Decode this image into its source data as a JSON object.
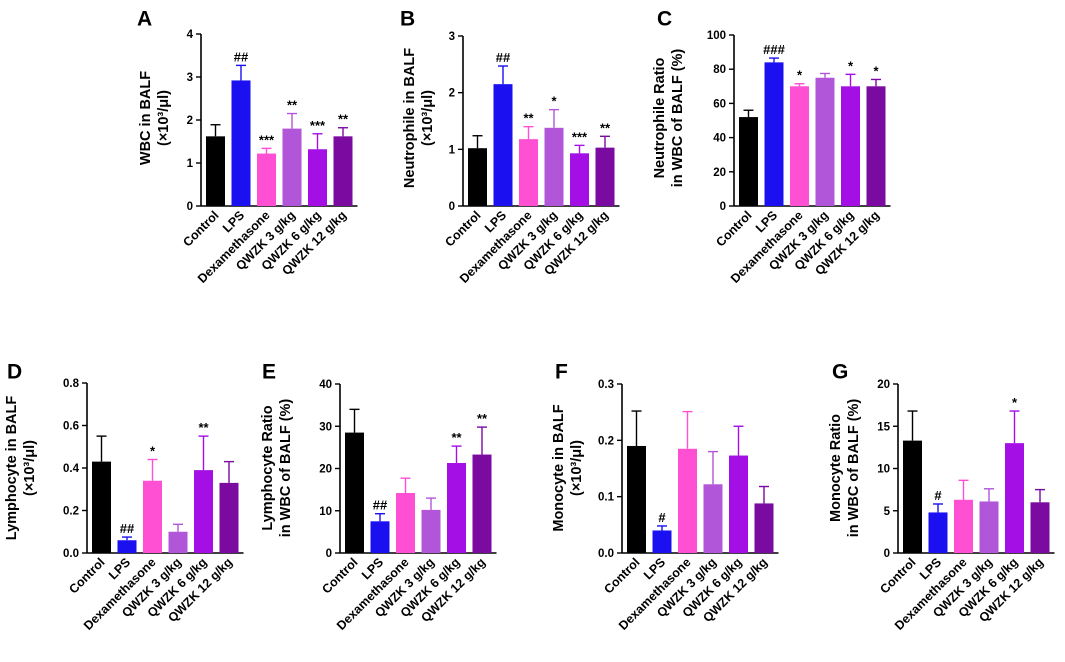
{
  "figure": {
    "categories": [
      "Control",
      "LPS",
      "Dexamethasone",
      "QWZK 3 g/kg",
      "QWZK 6 g/kg",
      "QWZK 12 g/kg"
    ],
    "colors": [
      "#000000",
      "#1a10f0",
      "#ff4fd2",
      "#b256d9",
      "#a40fe6",
      "#7a0aa0"
    ]
  },
  "chart_data": [
    {
      "panel": "A",
      "type": "bar",
      "ylabel_lines": [
        "WBC in BALF",
        "(×10³/μl)"
      ],
      "ylim": [
        0,
        4
      ],
      "yticks": [
        "0",
        "1",
        "2",
        "3",
        "4"
      ],
      "values": [
        1.62,
        2.92,
        1.22,
        1.8,
        1.32,
        1.62
      ],
      "errors": [
        0.27,
        0.35,
        0.12,
        0.35,
        0.36,
        0.2
      ],
      "annotations": [
        "",
        "##",
        "***",
        "**",
        "***",
        "**"
      ]
    },
    {
      "panel": "B",
      "type": "bar",
      "ylabel_lines": [
        "Neutrophile in BALF",
        "(×10³/μl)"
      ],
      "ylim": [
        0,
        3
      ],
      "yticks": [
        "0",
        "1",
        "2",
        "3"
      ],
      "values": [
        1.02,
        2.15,
        1.18,
        1.38,
        0.93,
        1.03
      ],
      "errors": [
        0.22,
        0.32,
        0.22,
        0.32,
        0.14,
        0.2
      ],
      "annotations": [
        "",
        "##",
        "**",
        "*",
        "***",
        "**"
      ]
    },
    {
      "panel": "C",
      "type": "bar",
      "ylabel_lines": [
        "Neutrophile Ratio",
        "in WBC of BALF (%)"
      ],
      "ylim": [
        0,
        100
      ],
      "yticks": [
        "0",
        "20",
        "40",
        "60",
        "80",
        "100"
      ],
      "values": [
        52,
        84,
        70,
        75,
        70,
        70
      ],
      "errors": [
        4,
        2.5,
        1.5,
        2.5,
        7,
        4
      ],
      "annotations": [
        "",
        "###",
        "*",
        "",
        "*",
        "*"
      ]
    },
    {
      "panel": "D",
      "type": "bar",
      "ylabel_lines": [
        "Lymphocyte in BALF",
        "(×10³/μl)"
      ],
      "ylim": [
        0,
        0.8
      ],
      "yticks": [
        "0.0",
        "0.2",
        "0.4",
        "0.6",
        "0.8"
      ],
      "values": [
        0.43,
        0.06,
        0.34,
        0.1,
        0.39,
        0.33
      ],
      "errors": [
        0.12,
        0.015,
        0.1,
        0.035,
        0.16,
        0.1
      ],
      "annotations": [
        "",
        "##",
        "*",
        "",
        "**",
        ""
      ]
    },
    {
      "panel": "E",
      "type": "bar",
      "ylabel_lines": [
        "Lymphocyte Ratio",
        "in WBC of BALF (%)"
      ],
      "ylim": [
        0,
        40
      ],
      "yticks": [
        "0",
        "10",
        "20",
        "30",
        "40"
      ],
      "values": [
        28.5,
        7.5,
        14.2,
        10.2,
        21.3,
        23.3
      ],
      "errors": [
        5.5,
        1.8,
        3.5,
        2.8,
        4,
        6.5
      ],
      "annotations": [
        "",
        "##",
        "",
        "",
        "**",
        "**"
      ]
    },
    {
      "panel": "F",
      "type": "bar",
      "ylabel_lines": [
        "Monocyte in BALF",
        "(×10³/μl)"
      ],
      "ylim": [
        0,
        0.3
      ],
      "yticks": [
        "0.0",
        "0.1",
        "0.2",
        "0.3"
      ],
      "values": [
        0.19,
        0.04,
        0.185,
        0.122,
        0.173,
        0.088
      ],
      "errors": [
        0.062,
        0.008,
        0.066,
        0.058,
        0.052,
        0.03
      ],
      "annotations": [
        "",
        "#",
        "",
        "",
        "",
        ""
      ]
    },
    {
      "panel": "G",
      "type": "bar",
      "ylabel_lines": [
        "Monocyte Ratio",
        "in WBC of BALF (%)"
      ],
      "ylim": [
        0,
        20
      ],
      "yticks": [
        "0",
        "5",
        "10",
        "15",
        "20"
      ],
      "values": [
        13.3,
        4.8,
        6.3,
        6.1,
        13,
        6
      ],
      "errors": [
        3.5,
        1,
        2.3,
        1.5,
        3.8,
        1.5
      ],
      "annotations": [
        "",
        "#",
        "",
        "",
        "*",
        ""
      ]
    }
  ]
}
